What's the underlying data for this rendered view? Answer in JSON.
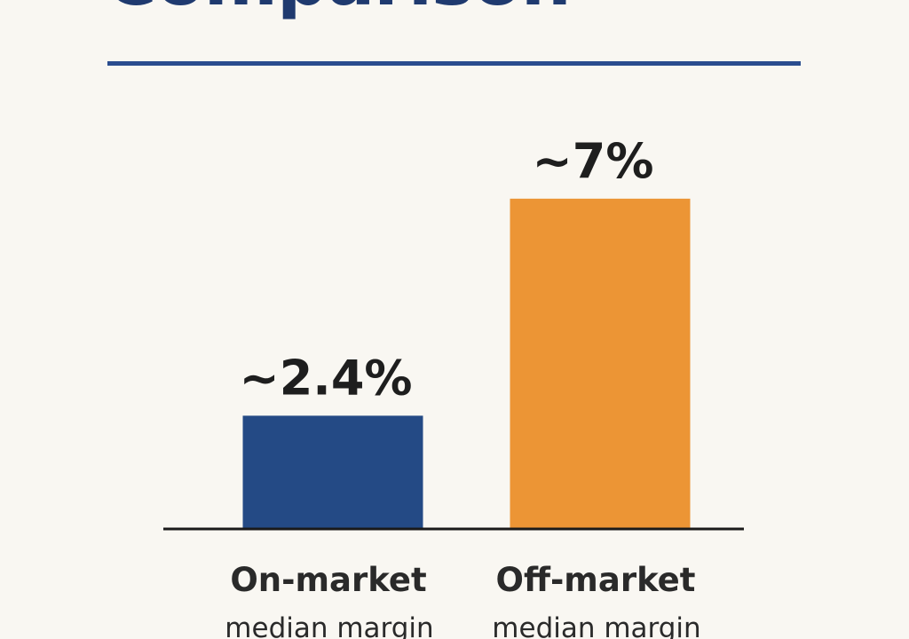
{
  "title": "Comparison",
  "colors": {
    "background": "#f9f7f2",
    "title": "#1f3a6f",
    "rule": "#2a4d8f",
    "axis": "#1a1a1a"
  },
  "chart_data": {
    "type": "bar",
    "categories": [
      "On-market",
      "Off-market"
    ],
    "category_sublabels": [
      "median margin",
      "median margin"
    ],
    "values": [
      2.4,
      7
    ],
    "value_labels": [
      "~2.4%",
      "~7%"
    ],
    "bar_colors": [
      "#244a85",
      "#ec9535"
    ],
    "ylim": [
      0,
      7.9
    ],
    "grid": false,
    "legend": "none",
    "xlabel": "",
    "ylabel": ""
  }
}
